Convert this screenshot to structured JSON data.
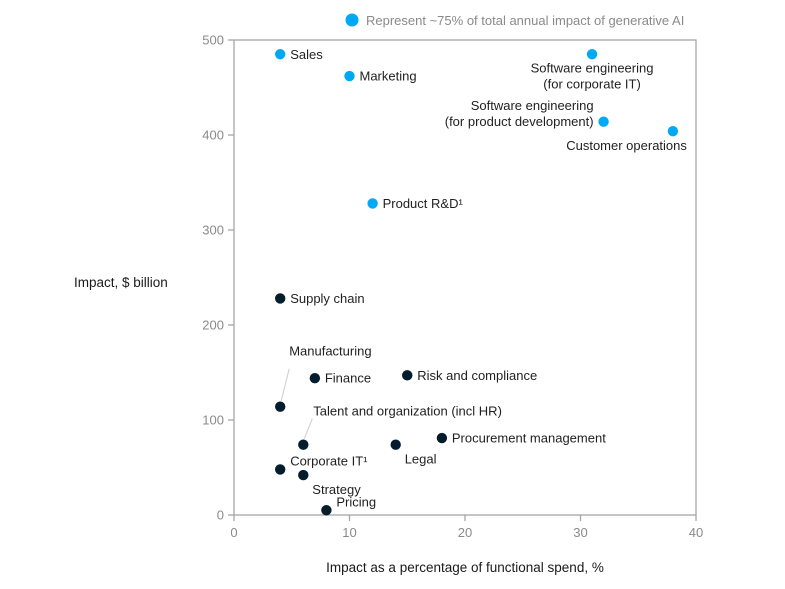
{
  "chart_data": {
    "type": "scatter",
    "title": "",
    "xlabel": "Impact as a percentage of functional spend, %",
    "ylabel": "Impact, $ billion",
    "xlim": [
      0,
      40
    ],
    "ylim": [
      0,
      500
    ],
    "xticks": [
      0,
      10,
      20,
      30,
      40
    ],
    "yticks": [
      0,
      100,
      200,
      300,
      400,
      500
    ],
    "grid": false,
    "legend": {
      "placement": "top-right",
      "entries": [
        {
          "label": "Represent ~75% of total annual impact of generative AI",
          "color": "#00A9F4"
        }
      ]
    },
    "colors": {
      "highlight": "#00A9F4",
      "other": "#051C2C",
      "axis": "#a6a6a6",
      "leader": "#cccccc"
    },
    "points": [
      {
        "name": "Sales",
        "lines": [
          "Sales"
        ],
        "x": 4,
        "y": 485,
        "group": "highlight",
        "label_pos": "right"
      },
      {
        "name": "Marketing",
        "lines": [
          "Marketing"
        ],
        "x": 10,
        "y": 462,
        "group": "highlight",
        "label_pos": "right"
      },
      {
        "name": "Software engineering (for corporate IT)",
        "lines": [
          "Software engineering",
          "(for corporate IT)"
        ],
        "x": 31,
        "y": 485,
        "group": "highlight",
        "label_pos": "below"
      },
      {
        "name": "Software engineering (for product development)",
        "lines": [
          "Software engineering",
          "(for product development)"
        ],
        "x": 32,
        "y": 414,
        "group": "highlight",
        "label_pos": "left"
      },
      {
        "name": "Customer operations",
        "lines": [
          "Customer operations"
        ],
        "x": 38,
        "y": 404,
        "group": "highlight",
        "label_pos": "below-left"
      },
      {
        "name": "Product R&D¹",
        "lines": [
          "Product R&D¹"
        ],
        "x": 12,
        "y": 328,
        "group": "highlight",
        "label_pos": "right"
      },
      {
        "name": "Supply chain",
        "lines": [
          "Supply chain"
        ],
        "x": 4,
        "y": 228,
        "group": "other",
        "label_pos": "right"
      },
      {
        "name": "Finance",
        "lines": [
          "Finance"
        ],
        "x": 7,
        "y": 144,
        "group": "other",
        "label_pos": "right"
      },
      {
        "name": "Risk and compliance",
        "lines": [
          "Risk and compliance"
        ],
        "x": 15,
        "y": 147,
        "group": "other",
        "label_pos": "right"
      },
      {
        "name": "Manufacturing",
        "lines": [
          "Manufacturing"
        ],
        "x": 4,
        "y": 114,
        "group": "other",
        "label_pos": "leader-up"
      },
      {
        "name": "Talent and organization (incl HR)",
        "lines": [
          "Talent and organization (incl HR)"
        ],
        "x": 6,
        "y": 74,
        "group": "other",
        "label_pos": "leader-up"
      },
      {
        "name": "Legal",
        "lines": [
          "Legal"
        ],
        "x": 14,
        "y": 74,
        "group": "other",
        "label_pos": "below-right"
      },
      {
        "name": "Procurement management",
        "lines": [
          "Procurement management"
        ],
        "x": 18,
        "y": 81,
        "group": "other",
        "label_pos": "right"
      },
      {
        "name": "Corporate IT¹",
        "lines": [
          "Corporate IT¹"
        ],
        "x": 4,
        "y": 48,
        "group": "other",
        "label_pos": "above-right"
      },
      {
        "name": "Strategy",
        "lines": [
          "Strategy"
        ],
        "x": 6,
        "y": 42,
        "group": "other",
        "label_pos": "below-right"
      },
      {
        "name": "Pricing",
        "lines": [
          "Pricing"
        ],
        "x": 8,
        "y": 5,
        "group": "other",
        "label_pos": "above-right"
      }
    ]
  }
}
